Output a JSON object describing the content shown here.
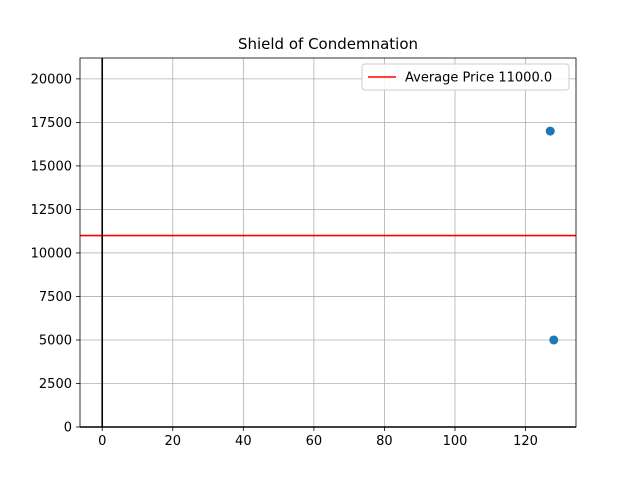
{
  "chart_data": {
    "type": "scatter",
    "title": "Shield of Condemnation",
    "xlabel": "",
    "ylabel": "",
    "xlim": [
      -6.3,
      134.3
    ],
    "ylim": [
      0,
      21200
    ],
    "xticks": [
      0,
      20,
      40,
      60,
      80,
      100,
      120
    ],
    "yticks": [
      0,
      2500,
      5000,
      7500,
      10000,
      12500,
      15000,
      17500,
      20000
    ],
    "grid": true,
    "series": [
      {
        "points": [
          {
            "x": 127,
            "y": 17000
          },
          {
            "x": 128,
            "y": 5000
          }
        ],
        "color": "#1f77b4"
      }
    ],
    "reference_lines": [
      {
        "orientation": "horizontal",
        "y": 11000,
        "color": "#ff0000",
        "label": "Average Price 11000.0"
      },
      {
        "orientation": "vertical",
        "x": 0,
        "color": "#000000"
      },
      {
        "orientation": "horizontal",
        "y": 0,
        "color": "#000000"
      }
    ],
    "legend": {
      "position": "top-right",
      "entries": [
        "Average Price 11000.0"
      ]
    }
  }
}
